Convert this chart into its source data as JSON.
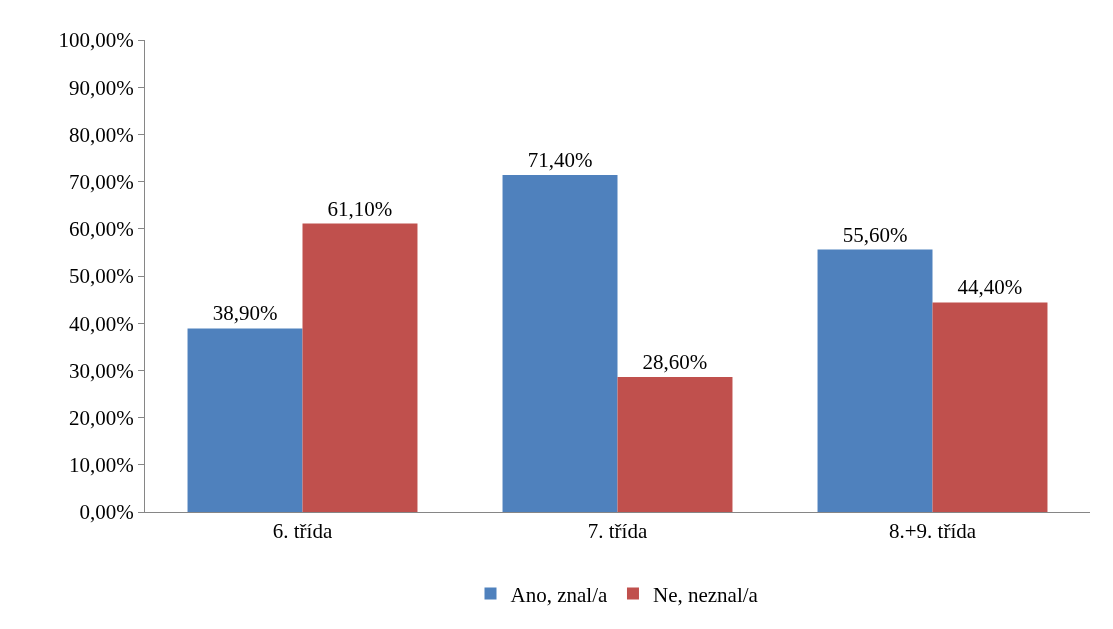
{
  "chart_data": {
    "type": "bar",
    "categories": [
      "6. třída",
      "7. třída",
      "8.+9. třída"
    ],
    "series": [
      {
        "name": "Ano, znal/a",
        "color": "#4f81bd",
        "values": [
          38.9,
          71.4,
          55.6
        ],
        "value_labels": [
          "38,90%",
          "71,40%",
          "55,60%"
        ]
      },
      {
        "name": "Ne, neznal/a",
        "color": "#c0504d",
        "values": [
          61.1,
          28.6,
          44.4
        ],
        "value_labels": [
          "61,10%",
          "28,60%",
          "44,40%"
        ]
      }
    ],
    "ylim": [
      0,
      100
    ],
    "yticks": [
      {
        "value": 0,
        "label": "0,00%"
      },
      {
        "value": 10,
        "label": "10,00%"
      },
      {
        "value": 20,
        "label": "20,00%"
      },
      {
        "value": 30,
        "label": "30,00%"
      },
      {
        "value": 40,
        "label": "40,00%"
      },
      {
        "value": 50,
        "label": "50,00%"
      },
      {
        "value": 60,
        "label": "60,00%"
      },
      {
        "value": 70,
        "label": "70,00%"
      },
      {
        "value": 80,
        "label": "80,00%"
      },
      {
        "value": 90,
        "label": "90,00%"
      },
      {
        "value": 100,
        "label": "100,00%"
      }
    ],
    "grid": false,
    "legend": "bottom"
  }
}
